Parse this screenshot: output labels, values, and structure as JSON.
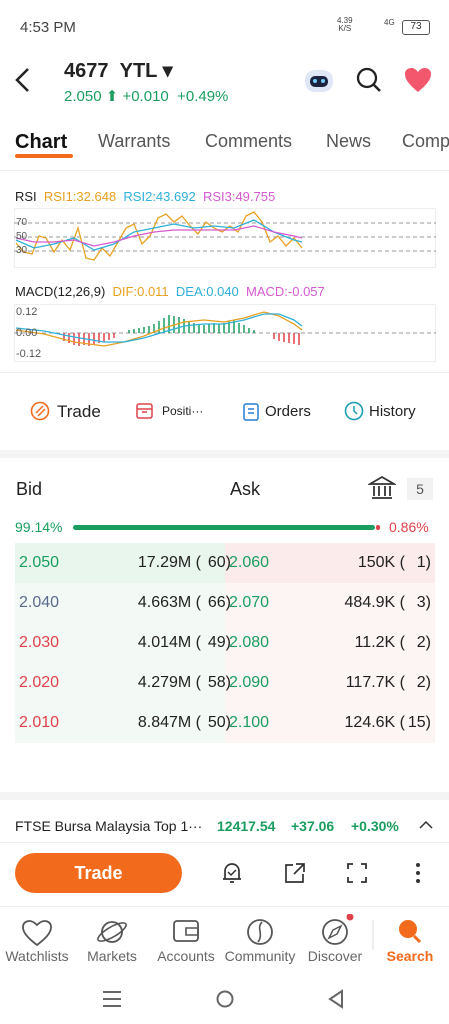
{
  "status_bar": {
    "time": "4:53 PM",
    "speed": "4.39",
    "speed_unit": "K/S",
    "network": "4G",
    "battery": "73"
  },
  "header": {
    "code": "4677",
    "name": "YTL",
    "price": "2.050",
    "change": "+0.010",
    "change_pct": "+0.49%"
  },
  "tabs": [
    "Chart",
    "Warrants",
    "Comments",
    "News",
    "Comp"
  ],
  "rsi": {
    "label": "RSI",
    "rsi1": "RSI1:32.648",
    "rsi2": "RSI2:43.692",
    "rsi3": "RSI3:49.755",
    "levels": [
      "70",
      "50",
      "30"
    ]
  },
  "macd": {
    "label": "MACD(12,26,9)",
    "dif": "DIF:0.011",
    "dea": "DEA:0.040",
    "macd": "MACD:-0.057",
    "levels": [
      "0.12",
      "0.00",
      "-0.12"
    ]
  },
  "actions": [
    "Trade",
    "Positi···",
    "Orders",
    "History"
  ],
  "orderbook": {
    "bid_label": "Bid",
    "ask_label": "Ask",
    "depth": "5",
    "bid_pct": "99.14%",
    "ask_pct": "0.86%",
    "rows": [
      [
        "2.050",
        "17.29M (",
        "60)",
        "2.060",
        "150K (",
        "1)"
      ],
      [
        "2.040",
        "4.663M (",
        "66)",
        "2.070",
        "484.9K (",
        "3)"
      ],
      [
        "2.030",
        "4.014M (",
        "49)",
        "2.080",
        "11.2K (",
        "2)"
      ],
      [
        "2.020",
        "4.279M (",
        "58)",
        "2.090",
        "117.7K (",
        "2)"
      ],
      [
        "2.010",
        "8.847M (",
        "50)",
        "2.100",
        "124.6K (",
        "15)"
      ]
    ]
  },
  "ticker": {
    "name": "FTSE Bursa Malaysia Top 1···",
    "value": "12417.54",
    "change": "+37.06",
    "pct": "+0.30%"
  },
  "toolbar": {
    "trade_button": "Trade"
  },
  "nav": [
    "Watchlists",
    "Markets",
    "Accounts",
    "Community",
    "Discover",
    "Search"
  ]
}
